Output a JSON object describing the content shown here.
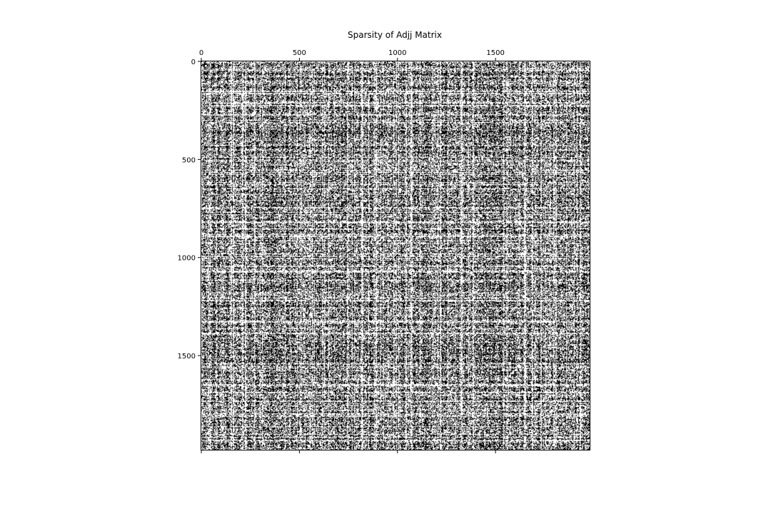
{
  "chart_data": {
    "type": "heatmap",
    "subtype": "sparsity-pattern",
    "title": "Sparsity of Adjj Matrix",
    "xlabel": "",
    "ylabel": "",
    "matrix_size": [
      1980,
      1980
    ],
    "xlim": [
      0,
      1980
    ],
    "ylim": [
      1980,
      0
    ],
    "x_ticks": [
      0,
      500,
      1000,
      1500
    ],
    "y_ticks": [
      0,
      500,
      1000,
      1500
    ],
    "x_tick_labels": [
      "0",
      "500",
      "1000",
      "1500"
    ],
    "y_tick_labels": [
      "0",
      "500",
      "1000",
      "1500"
    ],
    "x_tick_position": "top",
    "nonzero_color": "#000000",
    "zero_color": "#ffffff",
    "approx_density": 0.45,
    "symmetric": true,
    "grid": false,
    "legend": "none"
  }
}
